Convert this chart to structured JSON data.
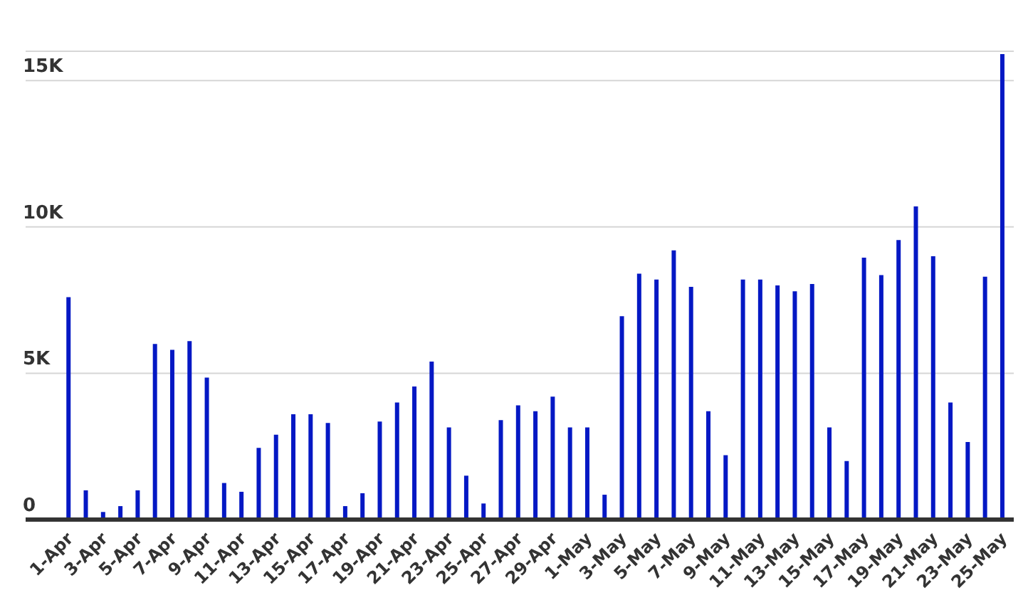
{
  "chart_data": {
    "type": "bar",
    "categories": [
      "1-Apr",
      null,
      "3-Apr",
      null,
      "5-Apr",
      null,
      "7-Apr",
      null,
      "9-Apr",
      null,
      "11-Apr",
      null,
      "13-Apr",
      null,
      "15-Apr",
      null,
      "17-Apr",
      null,
      "19-Apr",
      null,
      "21-Apr",
      null,
      "23-Apr",
      null,
      "25-Apr",
      null,
      "27-Apr",
      null,
      "29-Apr",
      null,
      "1-May",
      null,
      "3-May",
      null,
      "5-May",
      null,
      "7-May",
      null,
      "9-May",
      null,
      "11-May",
      null,
      "13-May",
      null,
      "15-May",
      null,
      "17-May",
      null,
      "19-May",
      null,
      "21-May",
      null,
      "23-May",
      null,
      "25-May"
    ],
    "values": [
      7600,
      1000,
      260,
      460,
      1000,
      6000,
      5800,
      6100,
      4850,
      1250,
      950,
      2450,
      2900,
      3600,
      3600,
      3300,
      460,
      900,
      3350,
      4000,
      4550,
      5400,
      3150,
      1500,
      550,
      3400,
      3900,
      3700,
      4200,
      3150,
      3150,
      850,
      6950,
      8400,
      8200,
      9200,
      7950,
      3700,
      2200,
      8200,
      8200,
      8000,
      7800,
      8050,
      3150,
      2000,
      8950,
      8350,
      9550,
      10700,
      9000,
      4000,
      2650,
      8300,
      15900
    ],
    "color": "#0418c4",
    "ylim": [
      0,
      16000
    ],
    "yticks": [
      {
        "value": 0,
        "label": "0"
      },
      {
        "value": 5000,
        "label": "5K"
      },
      {
        "value": 10000,
        "label": "10K"
      },
      {
        "value": 15000,
        "label": "15K"
      }
    ],
    "grid": "y"
  }
}
